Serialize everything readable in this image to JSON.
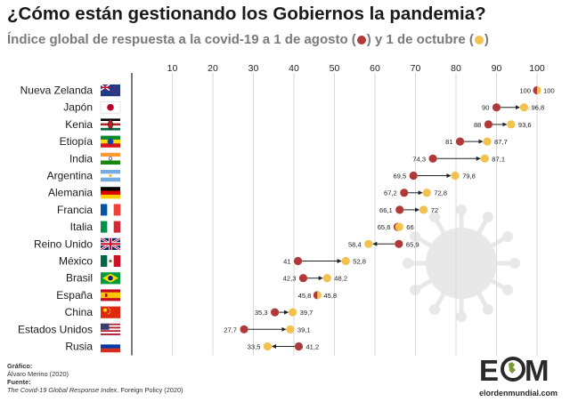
{
  "title": "¿Cómo están gestionando los Gobiernos la pandemia?",
  "subtitle": {
    "part1": "Índice global de respuesta a la covid-19 a 1 de agosto (",
    "part2": ") y 1 de octubre (",
    "part3": ")"
  },
  "colors": {
    "agosto": "#b03a3a",
    "octubre": "#f2c14e",
    "arrow": "#222222",
    "grid": "#d9d9d9",
    "virus": "#e8e8e8"
  },
  "chart_data": {
    "type": "dot-arrow",
    "xlim": [
      0,
      100
    ],
    "xticks": [
      10,
      20,
      30,
      40,
      50,
      60,
      70,
      80,
      90,
      100
    ],
    "series": [
      {
        "name": "1 de agosto"
      },
      {
        "name": "1 de octubre"
      }
    ],
    "rows": [
      {
        "country": "Nueva Zelanda",
        "agosto": 100,
        "octubre": 100,
        "flag": "new-zealand-flag"
      },
      {
        "country": "Japón",
        "agosto": 90,
        "octubre": 96.8,
        "flag": "japan-flag"
      },
      {
        "country": "Kenia",
        "agosto": 88,
        "octubre": 93.6,
        "flag": "kenya-flag"
      },
      {
        "country": "Etiopía",
        "agosto": 81,
        "octubre": 87.7,
        "flag": "ethiopia-flag"
      },
      {
        "country": "India",
        "agosto": 74.3,
        "octubre": 87.1,
        "flag": "india-flag"
      },
      {
        "country": "Argentina",
        "agosto": 69.5,
        "octubre": 79.8,
        "flag": "argentina-flag"
      },
      {
        "country": "Alemania",
        "agosto": 67.2,
        "octubre": 72.8,
        "flag": "germany-flag"
      },
      {
        "country": "Francia",
        "agosto": 66.1,
        "octubre": 72,
        "flag": "france-flag"
      },
      {
        "country": "Italia",
        "agosto": 65.6,
        "octubre": 66,
        "flag": "italy-flag"
      },
      {
        "country": "Reino Unido",
        "agosto": 65.9,
        "octubre": 58.4,
        "flag": "uk-flag"
      },
      {
        "country": "México",
        "agosto": 41,
        "octubre": 52.8,
        "flag": "mexico-flag"
      },
      {
        "country": "Brasil",
        "agosto": 42.3,
        "octubre": 48.2,
        "flag": "brazil-flag"
      },
      {
        "country": "España",
        "agosto": 45.8,
        "octubre": 45.8,
        "flag": "spain-flag"
      },
      {
        "country": "China",
        "agosto": 35.3,
        "octubre": 39.7,
        "flag": "china-flag"
      },
      {
        "country": "Estados Unidos",
        "agosto": 27.7,
        "octubre": 39.1,
        "flag": "usa-flag"
      },
      {
        "country": "Rusia",
        "agosto": 41.2,
        "octubre": 33.5,
        "flag": "russia-flag"
      }
    ]
  },
  "footer": {
    "grafico_label": "Gráfico:",
    "grafico_value": "Álvaro Merino (2020)",
    "fuente_label": "Fuente:",
    "fuente_title": "The Covid-19 Global Response Index",
    "fuente_rest": ". Foreign Policy (2020)"
  },
  "logo": {
    "word_left": "E",
    "word_right": "M",
    "url": "elordenmundial.com"
  }
}
